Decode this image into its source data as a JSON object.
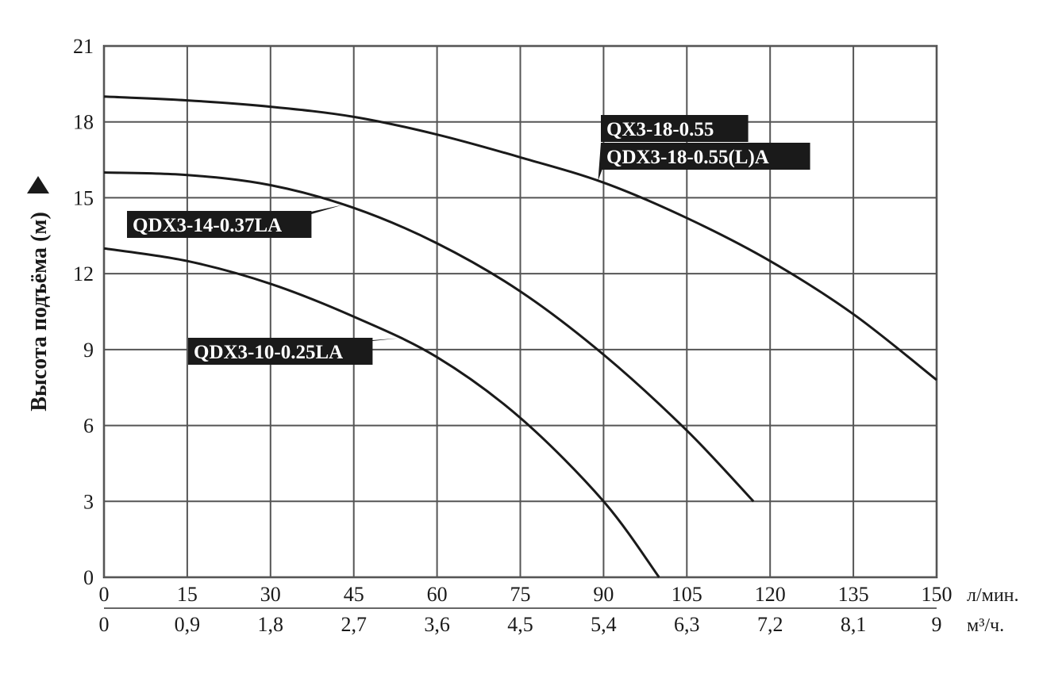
{
  "chart_data": {
    "type": "line",
    "ylabel": "Высота подъёма (м)",
    "x_unit_primary": "л/мин.",
    "x_unit_secondary": "м³/ч.",
    "x_ticks_primary": [
      "0",
      "15",
      "30",
      "45",
      "60",
      "75",
      "90",
      "105",
      "120",
      "135",
      "150"
    ],
    "x_ticks_secondary": [
      "0",
      "0,9",
      "1,8",
      "2,7",
      "3,6",
      "4,5",
      "5,4",
      "6,3",
      "7,2",
      "8,1",
      "9"
    ],
    "y_ticks": [
      "0",
      "3",
      "6",
      "9",
      "12",
      "15",
      "18",
      "21"
    ],
    "xlim": [
      0,
      150
    ],
    "ylim": [
      0,
      21
    ],
    "grid": true,
    "series": [
      {
        "name": "QX3-18-0.55 / QDX3-18-0.55(L)A",
        "labels": [
          "QX3-18-0.55",
          "QDX3-18-0.55(L)A"
        ],
        "x": [
          0,
          15,
          30,
          45,
          60,
          75,
          90,
          105,
          120,
          135,
          150
        ],
        "y": [
          19.0,
          18.85,
          18.6,
          18.2,
          17.5,
          16.6,
          15.6,
          14.2,
          12.5,
          10.4,
          7.8
        ]
      },
      {
        "name": "QDX3-14-0.37LA",
        "labels": [
          "QDX3-14-0.37LA"
        ],
        "x": [
          0,
          15,
          30,
          45,
          60,
          75,
          90,
          105,
          117
        ],
        "y": [
          16.0,
          15.9,
          15.5,
          14.6,
          13.2,
          11.3,
          8.8,
          5.8,
          3.0
        ]
      },
      {
        "name": "QDX3-10-0.25LA",
        "labels": [
          "QDX3-10-0.25LA"
        ],
        "x": [
          0,
          15,
          30,
          45,
          60,
          75,
          90,
          100
        ],
        "y": [
          13.0,
          12.5,
          11.6,
          10.3,
          8.7,
          6.3,
          3.0,
          0.0
        ]
      }
    ]
  }
}
